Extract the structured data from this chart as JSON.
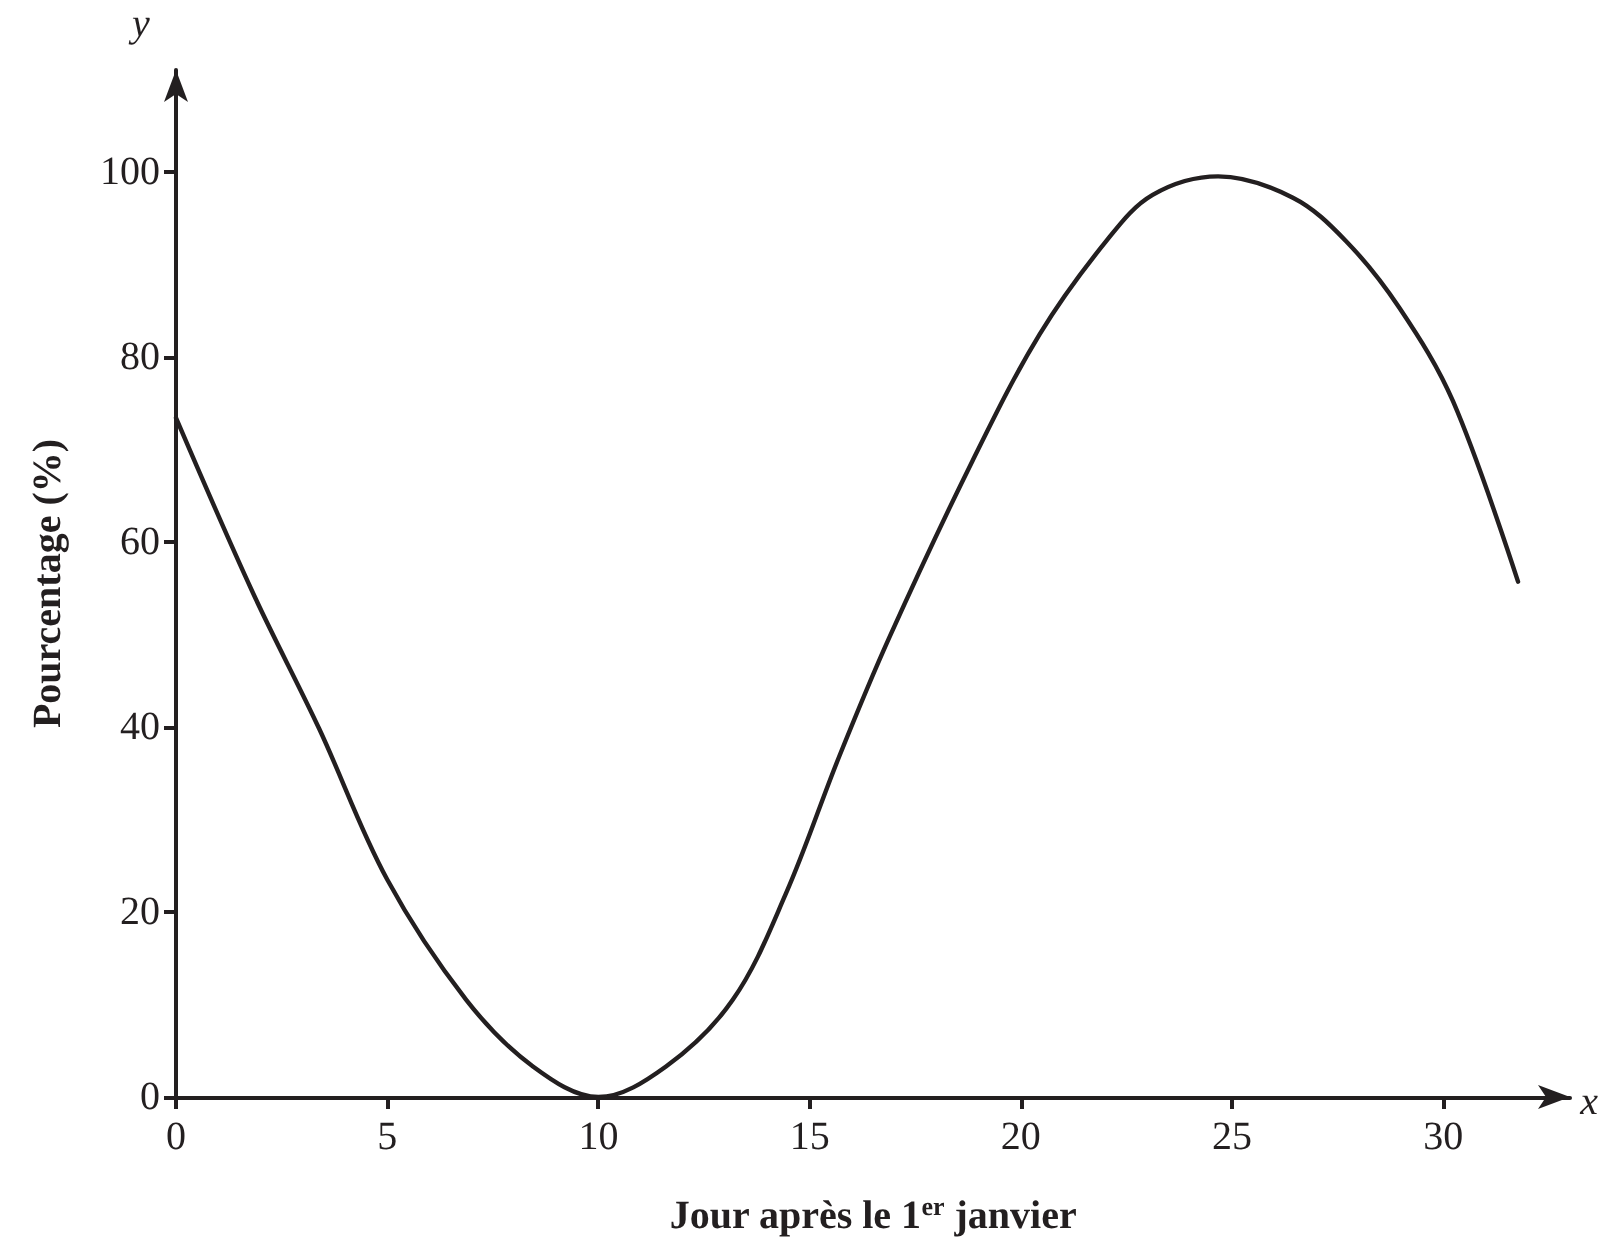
{
  "chart_data": {
    "type": "line",
    "xlabel": "Jour après le 1$^{er}$ janvier",
    "ylabel": "Pourcentage (%)",
    "annotations": [
      "y",
      "x"
    ],
    "x": [
      0,
      1.82,
      3.39,
      5,
      6.87,
      8.45,
      10,
      11.6,
      13.18,
      14.44,
      15.7,
      16.89,
      18.86,
      20.44,
      22.02,
      23.12,
      24.67,
      26.44,
      27.7,
      28.96,
      30.23,
      31.77
    ],
    "series": [
      {
        "color": "#231f20",
        "values": [
          73.4,
          54.5,
          39.8,
          23.5,
          10.5,
          3.3,
          0,
          3.3,
          10.5,
          22,
          36.8,
          49.7,
          68.8,
          82.4,
          92.5,
          97.5,
          99.5,
          97.2,
          92.5,
          85.3,
          75.2,
          55.7
        ]
      }
    ],
    "xlim": [
      0,
      33
    ],
    "ylim": [
      0,
      111
    ],
    "xticks": [
      0,
      5,
      10,
      15,
      20,
      25,
      30
    ],
    "yticks": [
      0,
      20,
      40,
      60,
      80,
      100
    ],
    "grid": false,
    "marker": "none",
    "line_style": "solid"
  }
}
